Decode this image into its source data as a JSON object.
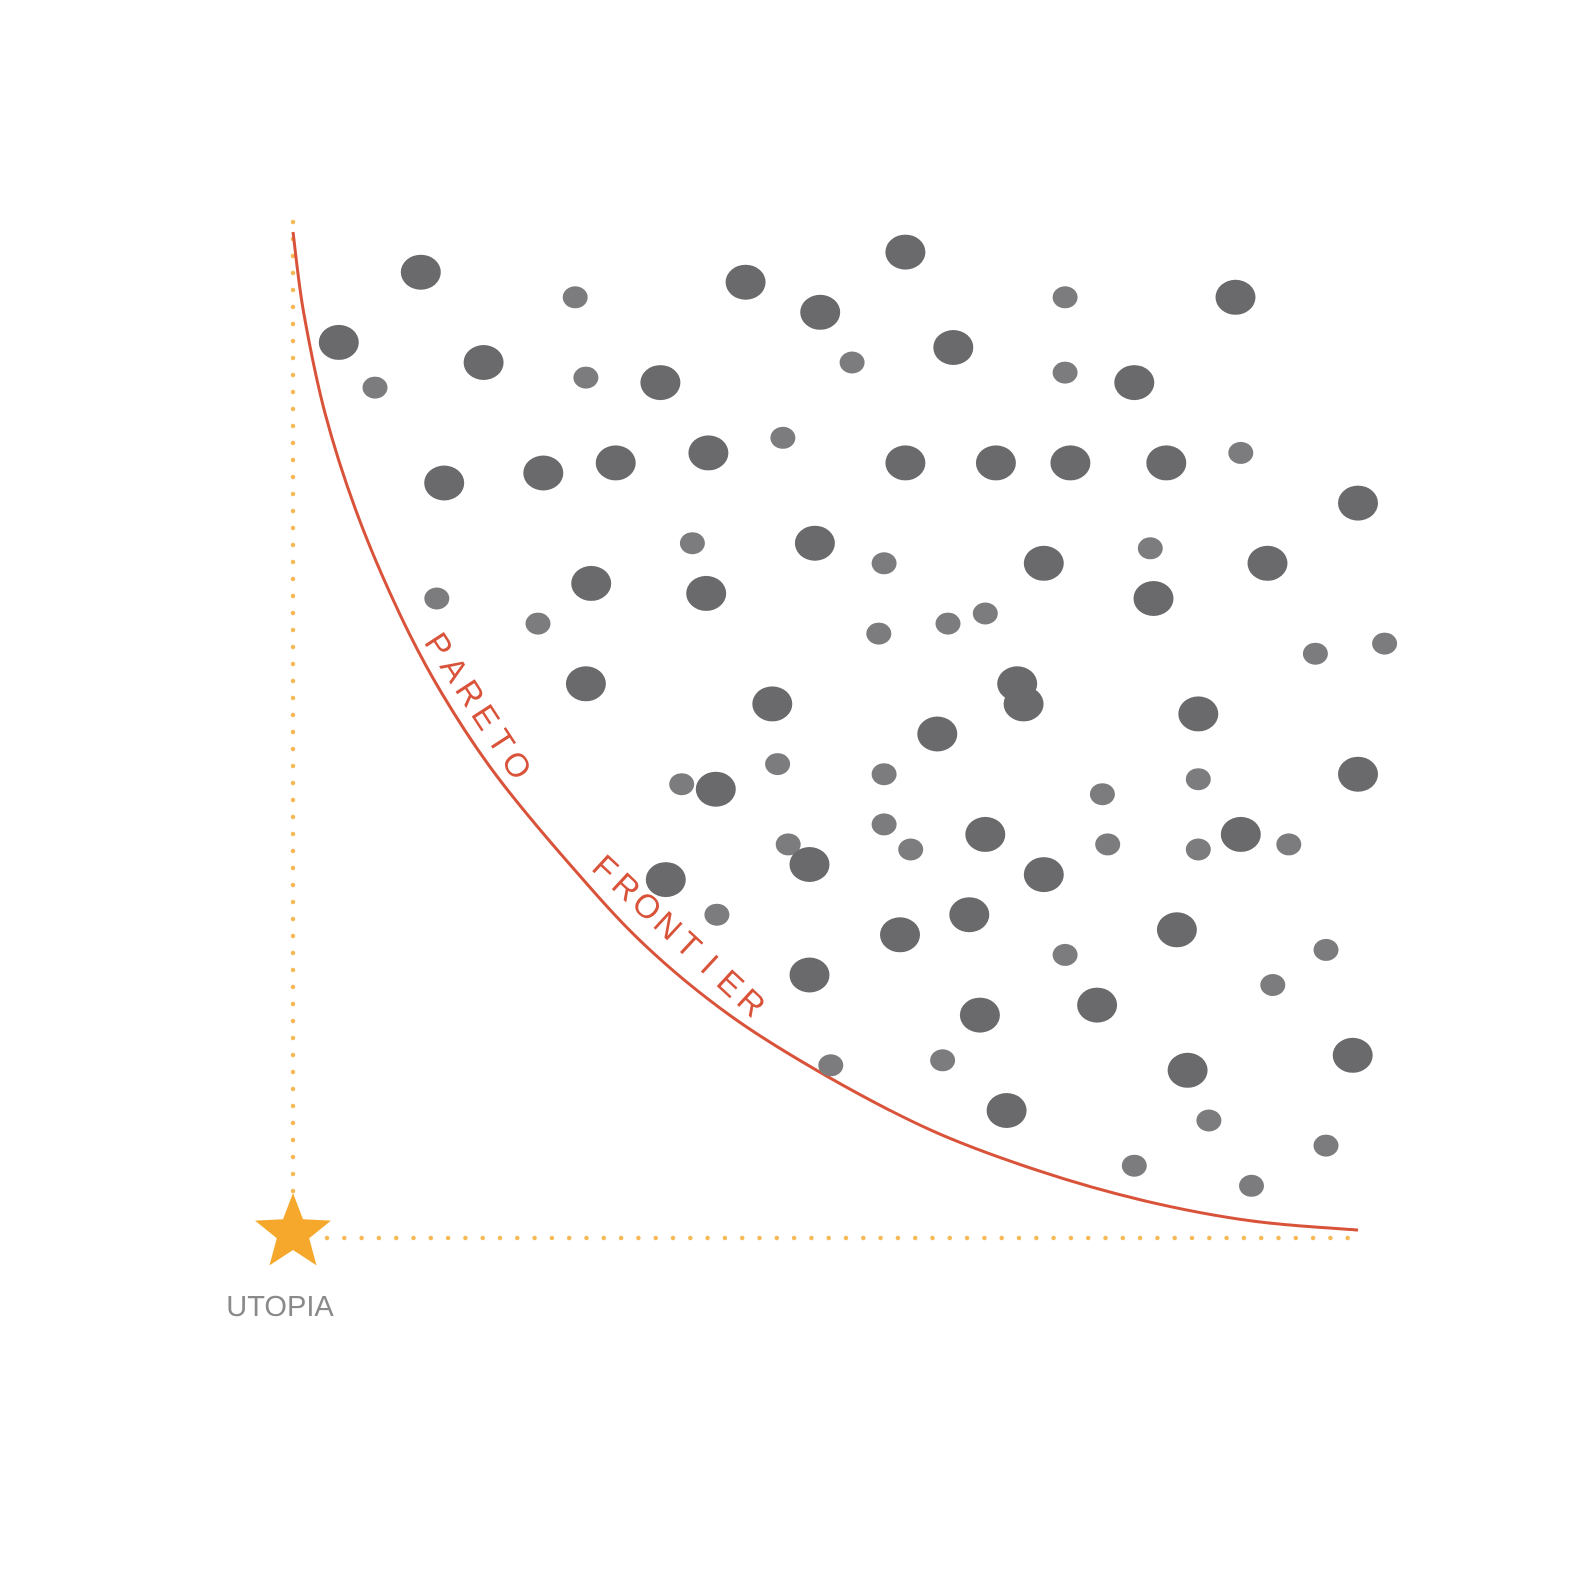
{
  "labels": {
    "frontier_word1": "PARETO",
    "frontier_word2": "FRONTIER",
    "utopia": "UTOPIA"
  },
  "icons": {
    "utopia_marker": "star-icon"
  },
  "colors": {
    "background": "#ffffff",
    "frontier": "#d9533a",
    "guides": "#f7b955",
    "star": "#f5a82c",
    "point_dark": "#6a6a6c",
    "point_light": "#7c7c7e",
    "utopia_text": "#8a8a8a"
  },
  "chart_data": {
    "type": "scatter",
    "title": "",
    "xlabel": "",
    "ylabel": "",
    "xlim": [
      0,
      100
    ],
    "ylim": [
      0,
      100
    ],
    "grid": false,
    "utopia": {
      "x": 0,
      "y": 0,
      "label": "UTOPIA"
    },
    "frontier": {
      "label": "PARETO FRONTIER",
      "points": [
        [
          0,
          100
        ],
        [
          1.0,
          92
        ],
        [
          3.0,
          82
        ],
        [
          6.0,
          72
        ],
        [
          10,
          62
        ],
        [
          14,
          54
        ],
        [
          19,
          46
        ],
        [
          26,
          37
        ],
        [
          33,
          29
        ],
        [
          41,
          22
        ],
        [
          50,
          16
        ],
        [
          60,
          10.5
        ],
        [
          70,
          6.5
        ],
        [
          80,
          3.5
        ],
        [
          90,
          1.5
        ],
        [
          100,
          0.6
        ]
      ]
    },
    "points": [
      {
        "x": 12,
        "y": 96,
        "size": "large"
      },
      {
        "x": 26.5,
        "y": 93.5,
        "size": "small"
      },
      {
        "x": 42.5,
        "y": 95,
        "size": "large"
      },
      {
        "x": 57.5,
        "y": 98,
        "size": "large"
      },
      {
        "x": 49.5,
        "y": 92,
        "size": "large"
      },
      {
        "x": 72.5,
        "y": 93.5,
        "size": "small"
      },
      {
        "x": 88.5,
        "y": 93.5,
        "size": "large"
      },
      {
        "x": 4.3,
        "y": 89,
        "size": "large"
      },
      {
        "x": 7.7,
        "y": 84.5,
        "size": "small"
      },
      {
        "x": 17.9,
        "y": 87,
        "size": "large"
      },
      {
        "x": 27.5,
        "y": 85.5,
        "size": "small"
      },
      {
        "x": 34.5,
        "y": 85,
        "size": "large"
      },
      {
        "x": 52.5,
        "y": 87,
        "size": "small"
      },
      {
        "x": 62,
        "y": 88.5,
        "size": "large"
      },
      {
        "x": 72.5,
        "y": 86,
        "size": "small"
      },
      {
        "x": 79,
        "y": 85,
        "size": "large"
      },
      {
        "x": 14.2,
        "y": 75,
        "size": "large"
      },
      {
        "x": 23.5,
        "y": 76,
        "size": "large"
      },
      {
        "x": 30.3,
        "y": 77,
        "size": "large"
      },
      {
        "x": 39,
        "y": 78,
        "size": "large"
      },
      {
        "x": 46,
        "y": 79.5,
        "size": "small"
      },
      {
        "x": 57.5,
        "y": 77,
        "size": "large"
      },
      {
        "x": 66,
        "y": 77,
        "size": "large"
      },
      {
        "x": 73,
        "y": 77,
        "size": "large"
      },
      {
        "x": 82,
        "y": 77,
        "size": "large"
      },
      {
        "x": 89,
        "y": 78,
        "size": "small"
      },
      {
        "x": 100,
        "y": 73,
        "size": "large"
      },
      {
        "x": 13.5,
        "y": 63.5,
        "size": "small"
      },
      {
        "x": 23,
        "y": 61,
        "size": "small"
      },
      {
        "x": 28,
        "y": 65,
        "size": "large"
      },
      {
        "x": 37.5,
        "y": 69,
        "size": "small"
      },
      {
        "x": 38.8,
        "y": 64,
        "size": "large"
      },
      {
        "x": 49,
        "y": 69,
        "size": "large"
      },
      {
        "x": 55.5,
        "y": 67,
        "size": "small"
      },
      {
        "x": 55,
        "y": 60,
        "size": "small"
      },
      {
        "x": 61.5,
        "y": 61,
        "size": "small"
      },
      {
        "x": 65,
        "y": 62,
        "size": "small"
      },
      {
        "x": 70.5,
        "y": 67,
        "size": "large"
      },
      {
        "x": 80.5,
        "y": 68.5,
        "size": "small"
      },
      {
        "x": 80.8,
        "y": 63.5,
        "size": "large"
      },
      {
        "x": 91.5,
        "y": 67,
        "size": "large"
      },
      {
        "x": 96,
        "y": 58,
        "size": "small"
      },
      {
        "x": 102.5,
        "y": 59,
        "size": "small"
      },
      {
        "x": 27.5,
        "y": 55,
        "size": "large"
      },
      {
        "x": 45,
        "y": 53,
        "size": "large"
      },
      {
        "x": 60.5,
        "y": 50,
        "size": "large"
      },
      {
        "x": 68,
        "y": 55,
        "size": "large"
      },
      {
        "x": 68.6,
        "y": 53,
        "size": "large"
      },
      {
        "x": 85,
        "y": 52,
        "size": "large"
      },
      {
        "x": 36.5,
        "y": 45,
        "size": "small"
      },
      {
        "x": 39.7,
        "y": 44.5,
        "size": "large"
      },
      {
        "x": 45.5,
        "y": 47,
        "size": "small"
      },
      {
        "x": 55.5,
        "y": 46,
        "size": "small"
      },
      {
        "x": 76,
        "y": 44,
        "size": "small"
      },
      {
        "x": 85,
        "y": 45.5,
        "size": "small"
      },
      {
        "x": 100,
        "y": 46,
        "size": "large"
      },
      {
        "x": 46.5,
        "y": 39,
        "size": "small"
      },
      {
        "x": 48.5,
        "y": 37,
        "size": "large"
      },
      {
        "x": 55.5,
        "y": 41,
        "size": "small"
      },
      {
        "x": 58,
        "y": 38.5,
        "size": "small"
      },
      {
        "x": 65,
        "y": 40,
        "size": "large"
      },
      {
        "x": 76.5,
        "y": 39,
        "size": "small"
      },
      {
        "x": 85,
        "y": 38.5,
        "size": "small"
      },
      {
        "x": 89,
        "y": 40,
        "size": "large"
      },
      {
        "x": 93.5,
        "y": 39,
        "size": "small"
      },
      {
        "x": 35,
        "y": 35.5,
        "size": "large"
      },
      {
        "x": 39.8,
        "y": 32,
        "size": "small"
      },
      {
        "x": 70.5,
        "y": 36,
        "size": "large"
      },
      {
        "x": 57,
        "y": 30,
        "size": "large"
      },
      {
        "x": 63.5,
        "y": 32,
        "size": "large"
      },
      {
        "x": 83,
        "y": 30.5,
        "size": "large"
      },
      {
        "x": 97,
        "y": 28.5,
        "size": "small"
      },
      {
        "x": 48.5,
        "y": 26,
        "size": "large"
      },
      {
        "x": 72.5,
        "y": 28,
        "size": "small"
      },
      {
        "x": 75.5,
        "y": 23,
        "size": "large"
      },
      {
        "x": 64.5,
        "y": 22,
        "size": "large"
      },
      {
        "x": 92,
        "y": 25,
        "size": "small"
      },
      {
        "x": 50.5,
        "y": 17,
        "size": "small"
      },
      {
        "x": 61,
        "y": 17.5,
        "size": "small"
      },
      {
        "x": 84,
        "y": 16.5,
        "size": "large"
      },
      {
        "x": 99.5,
        "y": 18,
        "size": "large"
      },
      {
        "x": 67,
        "y": 12.5,
        "size": "large"
      },
      {
        "x": 86,
        "y": 11.5,
        "size": "small"
      },
      {
        "x": 97,
        "y": 9,
        "size": "small"
      },
      {
        "x": 79,
        "y": 7,
        "size": "small"
      },
      {
        "x": 90,
        "y": 5,
        "size": "small"
      }
    ]
  }
}
